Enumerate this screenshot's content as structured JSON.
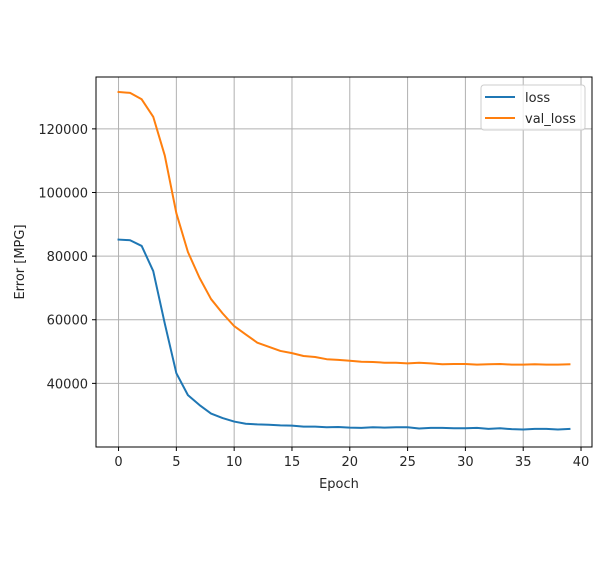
{
  "chart_data": {
    "type": "line",
    "title": "",
    "xlabel": "Epoch",
    "ylabel": "Error [MPG]",
    "xlim": [
      -1.95,
      40.95
    ],
    "ylim": [
      20000,
      136300
    ],
    "xticks": [
      0,
      5,
      10,
      15,
      20,
      25,
      30,
      35,
      40
    ],
    "xtick_labels": [
      "0",
      "5",
      "10",
      "15",
      "20",
      "25",
      "30",
      "35",
      "40"
    ],
    "yticks": [
      40000,
      60000,
      80000,
      100000,
      120000
    ],
    "ytick_labels": [
      "40000",
      "60000",
      "80000",
      "100000",
      "120000"
    ],
    "grid": true,
    "legend_position": "upper right",
    "x": [
      0,
      1,
      2,
      3,
      4,
      5,
      6,
      7,
      8,
      9,
      10,
      11,
      12,
      13,
      14,
      15,
      16,
      17,
      18,
      19,
      20,
      21,
      22,
      23,
      24,
      25,
      26,
      27,
      28,
      29,
      30,
      31,
      32,
      33,
      34,
      35,
      36,
      37,
      38,
      39
    ],
    "series": [
      {
        "name": "loss",
        "color": "#1f77b4",
        "values": [
          85200,
          85000,
          83200,
          75300,
          58800,
          43200,
          36300,
          33200,
          30500,
          29100,
          28000,
          27300,
          27100,
          27000,
          26800,
          26700,
          26400,
          26400,
          26200,
          26300,
          26100,
          26000,
          26200,
          26100,
          26200,
          26200,
          25800,
          26000,
          26000,
          25900,
          25900,
          26000,
          25700,
          25900,
          25600,
          25500,
          25700,
          25700,
          25500,
          25700
        ]
      },
      {
        "name": "val_loss",
        "color": "#ff7f0e",
        "values": [
          131600,
          131300,
          129300,
          123800,
          111600,
          93500,
          81300,
          73200,
          66500,
          62000,
          58000,
          55400,
          52800,
          51500,
          50200,
          49500,
          48600,
          48300,
          47600,
          47400,
          47100,
          46800,
          46700,
          46500,
          46500,
          46300,
          46500,
          46300,
          46000,
          46100,
          46100,
          45900,
          46000,
          46100,
          45900,
          45900,
          46000,
          45900,
          45900,
          46000
        ]
      }
    ]
  },
  "legend": {
    "items": [
      {
        "label": "loss",
        "color": "#1f77b4"
      },
      {
        "label": "val_loss",
        "color": "#ff7f0e"
      }
    ]
  },
  "style": {
    "grid_color": "#b0b0b0",
    "axis_color": "#000000",
    "text_color": "#262626"
  }
}
